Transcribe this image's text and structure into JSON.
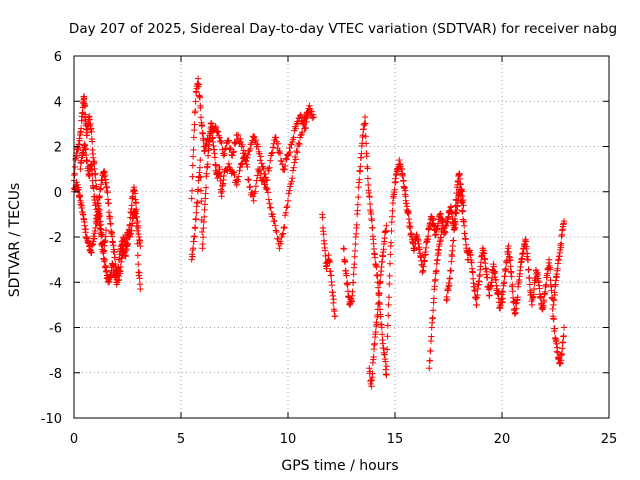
{
  "chart_data": {
    "type": "scatter",
    "title": "Day 207 of 2025, Sidereal Day-to-day VTEC variation (SDTVAR) for receiver nabg",
    "xlabel": "GPS time / hours",
    "ylabel": "SDTVAR / TECUs",
    "xlim": [
      0,
      25
    ],
    "ylim": [
      -10,
      6
    ],
    "xticks": [
      0,
      5,
      10,
      15,
      20,
      25
    ],
    "yticks": [
      -10,
      -8,
      -6,
      -4,
      -2,
      0,
      2,
      4,
      6
    ],
    "grid": true,
    "marker": "+",
    "series": [
      {
        "name": "SDTVAR",
        "color": "#ff0000",
        "segments": [
          {
            "x": [
              0.0,
              0.1,
              0.2,
              0.3,
              0.4,
              0.45,
              0.5,
              0.55,
              0.6,
              0.7,
              0.8,
              0.9,
              1.0,
              1.1,
              1.2,
              1.3,
              1.4,
              1.5,
              1.6,
              1.7,
              1.8,
              1.9,
              2.0,
              2.1,
              2.2,
              2.3,
              2.4,
              2.5,
              2.6,
              2.7,
              2.8,
              2.9,
              3.0,
              3.1
            ],
            "y": [
              0.5,
              1.6,
              1.9,
              2.6,
              3.5,
              4.2,
              3.8,
              3.0,
              2.5,
              3.3,
              2.8,
              1.5,
              0.8,
              -0.5,
              -1.5,
              -2.3,
              -3.0,
              -3.5,
              -4.0,
              -3.8,
              -3.2,
              -3.6,
              -4.1,
              -3.0,
              -2.5,
              -2.0,
              -2.4,
              -1.8,
              -2.0,
              -1.5,
              -1.0,
              -0.8,
              -1.6,
              -2.4
            ]
          },
          {
            "x": [
              0.0,
              0.1,
              0.2,
              0.3,
              0.4,
              0.5,
              0.6,
              0.7,
              0.8,
              0.9,
              1.0,
              1.1,
              1.2,
              1.3,
              1.4,
              1.5,
              1.6,
              1.7,
              1.8,
              1.9,
              2.0,
              2.1,
              2.2,
              2.3,
              2.4,
              2.5,
              2.6,
              2.7,
              2.8,
              2.9,
              3.0,
              3.1
            ],
            "y": [
              0.0,
              0.3,
              0.1,
              -0.4,
              -0.9,
              -1.5,
              -2.0,
              -2.4,
              -2.7,
              -2.2,
              -1.6,
              -0.9,
              -0.2,
              0.5,
              0.9,
              0.4,
              -0.5,
              -1.4,
              -2.2,
              -2.9,
              -3.5,
              -3.9,
              -3.1,
              -2.6,
              -2.8,
              -2.3,
              -1.5,
              -0.6,
              0.2,
              -0.5,
              -3.2,
              -4.3
            ]
          },
          {
            "x": [
              0.3,
              0.4,
              0.5,
              0.6,
              0.7,
              0.8,
              0.9,
              1.0,
              1.1,
              1.2,
              1.3,
              1.4,
              1.5
            ],
            "y": [
              1.0,
              1.6,
              2.1,
              1.4,
              0.7,
              1.2,
              0.2,
              -0.6,
              -1.3,
              -0.8,
              -1.9,
              -2.6,
              -1.7
            ]
          },
          {
            "x": [
              5.5,
              5.6,
              5.7,
              5.8,
              5.9,
              6.0,
              6.1,
              6.2,
              6.4,
              6.6,
              6.8,
              7.0,
              7.2,
              7.4,
              7.6,
              7.8,
              8.0,
              8.2,
              8.4,
              8.6,
              8.8,
              9.0,
              9.2,
              9.4,
              9.6,
              9.8,
              10.0,
              10.2,
              10.4,
              10.6,
              10.8,
              11.0,
              11.2
            ],
            "y": [
              -0.3,
              2.4,
              4.4,
              5.0,
              3.8,
              2.6,
              1.8,
              2.2,
              2.6,
              2.9,
              2.4,
              1.6,
              2.2,
              1.6,
              2.5,
              2.2,
              1.4,
              1.8,
              2.4,
              2.0,
              1.1,
              0.5,
              1.6,
              2.4,
              1.8,
              1.0,
              1.6,
              2.2,
              3.0,
              3.4,
              2.8,
              3.6,
              3.3
            ]
          },
          {
            "x": [
              5.5,
              5.6,
              5.7,
              5.8,
              5.9,
              6.0,
              6.1,
              6.2,
              6.3,
              6.4,
              6.5,
              6.6,
              6.7,
              6.8,
              6.9,
              7.0,
              7.2,
              7.4,
              7.6,
              7.8,
              8.0,
              8.2,
              8.4,
              8.6,
              8.8,
              9.0,
              9.2,
              9.4,
              9.6,
              9.8,
              10.0,
              10.2,
              10.4,
              10.6,
              10.8,
              11.0
            ],
            "y": [
              -3.0,
              -2.2,
              -1.2,
              0.1,
              1.4,
              -2.5,
              -0.8,
              0.8,
              1.9,
              3.0,
              2.2,
              1.2,
              0.6,
              1.0,
              -0.2,
              0.7,
              1.1,
              0.9,
              0.3,
              1.2,
              1.7,
              0.2,
              -0.4,
              1.0,
              0.5,
              0.1,
              -0.7,
              -1.5,
              -2.5,
              -1.6,
              -0.4,
              0.6,
              1.8,
              2.5,
              3.3,
              3.8
            ]
          },
          {
            "x": [
              11.6,
              11.7,
              11.8,
              11.9,
              12.0,
              12.1,
              12.2
            ],
            "y": [
              -1.0,
              -2.3,
              -3.4,
              -2.8,
              -3.7,
              -4.6,
              -5.5
            ]
          },
          {
            "x": [
              12.6,
              12.7,
              12.8,
              12.9,
              13.0,
              13.1,
              13.2,
              13.3,
              13.4,
              13.5,
              13.6,
              13.7,
              13.8,
              13.9,
              14.0,
              14.1,
              14.2,
              14.3,
              14.4,
              14.5,
              14.6,
              14.7,
              14.8,
              14.9,
              15.0,
              15.1,
              15.2,
              15.3,
              15.4,
              15.5
            ],
            "y": [
              -2.5,
              -3.5,
              -4.4,
              -5.0,
              -4.6,
              -3.2,
              -1.6,
              0.2,
              1.5,
              2.5,
              3.3,
              1.1,
              -0.2,
              -1.2,
              -2.3,
              -3.2,
              -4.0,
              -5.2,
              -6.3,
              -7.2,
              -8.1,
              -5.0,
              -2.4,
              -0.5,
              0.4,
              0.9,
              1.4,
              1.0,
              0.5,
              -0.2
            ]
          },
          {
            "x": [
              13.8,
              13.9,
              14.0,
              14.1,
              14.2,
              14.3,
              14.4,
              14.5,
              14.6
            ],
            "y": [
              -7.8,
              -8.6,
              -7.3,
              -6.2,
              -5.2,
              -4.0,
              -3.1,
              -2.2,
              -1.5
            ]
          },
          {
            "x": [
              15.5,
              15.6,
              15.7,
              15.8,
              15.9,
              16.0,
              16.1,
              16.2,
              16.3,
              16.4,
              16.5,
              16.6,
              16.7,
              16.8,
              16.9,
              17.0,
              17.1,
              17.2,
              17.3,
              17.4,
              17.5,
              17.6,
              17.7,
              17.8,
              17.9,
              18.0,
              18.1,
              18.2,
              18.3,
              18.4,
              18.5,
              18.6,
              18.7,
              18.8,
              18.9,
              19.0,
              19.1,
              19.2,
              19.3,
              19.4,
              19.5,
              19.6,
              19.7,
              19.8,
              19.9,
              20.0
            ],
            "y": [
              -0.4,
              -0.9,
              -1.6,
              -2.1,
              -2.5,
              -1.9,
              -2.3,
              -2.9,
              -3.5,
              -2.8,
              -2.2,
              -1.6,
              -1.1,
              -1.4,
              -1.9,
              -1.5,
              -1.0,
              -1.2,
              -1.8,
              -1.5,
              -1.1,
              -0.7,
              -1.2,
              -1.6,
              -0.6,
              0.1,
              -0.4,
              -1.3,
              -2.1,
              -3.0,
              -2.6,
              -3.4,
              -4.2,
              -5.0,
              -4.1,
              -3.3,
              -2.5,
              -3.0,
              -3.8,
              -4.6,
              -4.0,
              -3.2,
              -3.9,
              -4.5,
              -5.1,
              -4.4
            ]
          },
          {
            "x": [
              16.6,
              16.7,
              16.8,
              16.9,
              17.0,
              17.1,
              17.2
            ],
            "y": [
              -7.8,
              -6.4,
              -4.9,
              -3.6,
              -2.8,
              -2.2,
              -1.6
            ]
          },
          {
            "x": [
              17.4,
              17.5,
              17.6,
              17.7,
              17.8,
              17.9,
              18.0,
              18.1,
              18.2
            ],
            "y": [
              -4.8,
              -4.2,
              -3.5,
              -2.4,
              -1.2,
              0.2,
              0.8,
              0.1,
              -0.6
            ]
          },
          {
            "x": [
              20.0,
              20.1,
              20.2,
              20.3,
              20.4,
              20.5,
              20.6,
              20.7,
              20.8,
              20.9,
              21.0,
              21.1,
              21.2,
              21.3,
              21.4,
              21.5,
              21.6,
              21.7,
              21.8,
              21.9,
              22.0,
              22.1,
              22.2,
              22.3,
              22.4,
              22.5,
              22.6,
              22.7,
              22.8,
              22.9
            ],
            "y": [
              -4.9,
              -4.0,
              -3.1,
              -2.4,
              -3.3,
              -4.4,
              -5.4,
              -4.8,
              -3.9,
              -3.0,
              -2.5,
              -2.1,
              -3.0,
              -4.1,
              -5.0,
              -4.3,
              -3.5,
              -4.0,
              -4.7,
              -5.2,
              -4.5,
              -3.7,
              -3.0,
              -4.2,
              -5.6,
              -6.5,
              -7.1,
              -7.6,
              -7.2,
              -6.0
            ]
          },
          {
            "x": [
              22.4,
              22.5,
              22.6,
              22.7,
              22.8,
              22.9
            ],
            "y": [
              -5.0,
              -4.1,
              -3.4,
              -2.7,
              -1.9,
              -1.3
            ]
          }
        ]
      }
    ]
  }
}
